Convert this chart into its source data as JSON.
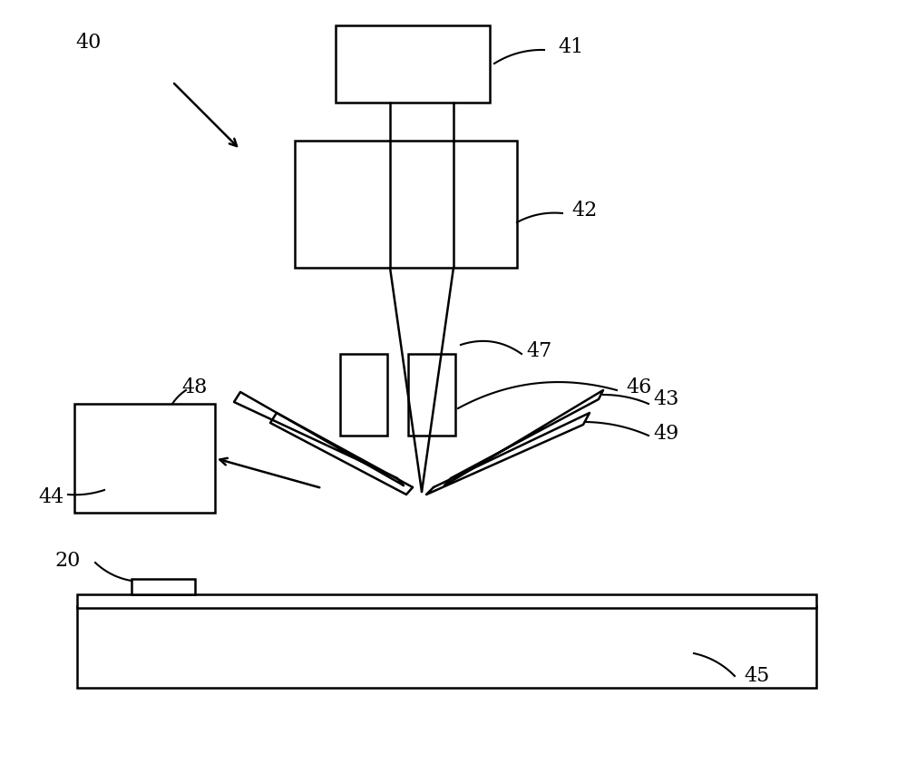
{
  "background": "#ffffff",
  "line_color": "#000000",
  "line_width": 1.8,
  "fig_width": 10.0,
  "fig_height": 8.64,
  "dpi": 100
}
